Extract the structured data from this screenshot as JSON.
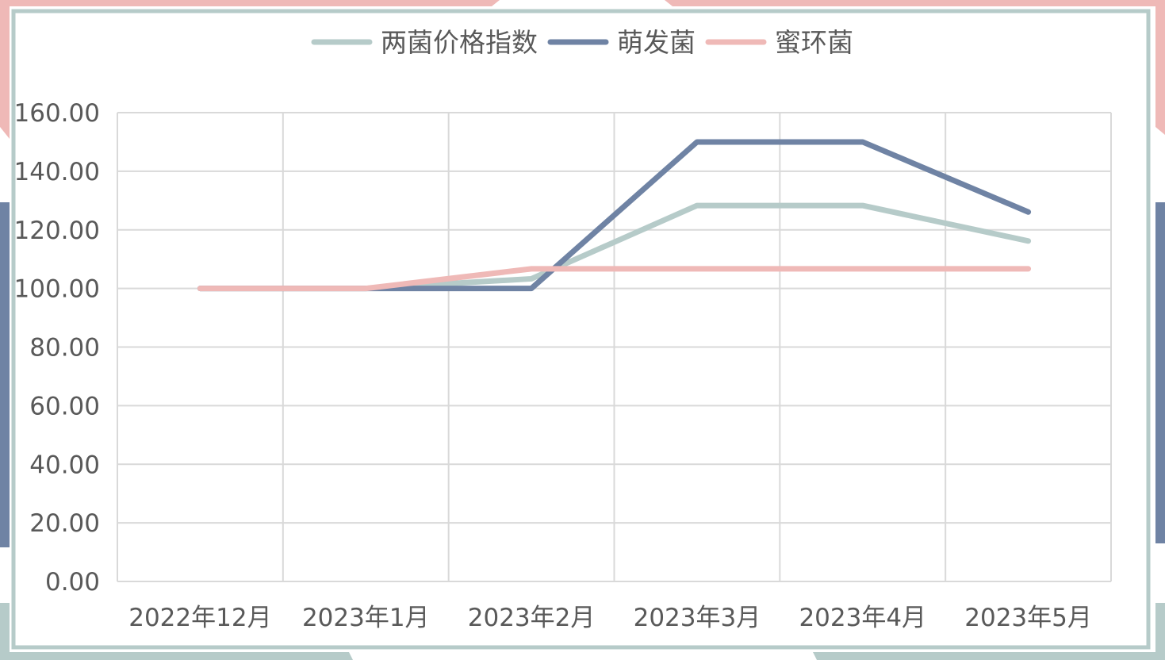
{
  "colors": {
    "frame": "#b6cbc9",
    "accent_pink": "#efb9b7",
    "accent_blue": "#6f83a4",
    "grid": "#d9d9d9",
    "text": "#595959"
  },
  "chart_data": {
    "type": "line",
    "categories": [
      "2022年12月",
      "2023年1月",
      "2023年2月",
      "2023年3月",
      "2023年4月",
      "2023年5月"
    ],
    "ylim": [
      0,
      160
    ],
    "y_ticks": [
      "0.00",
      "20.00",
      "40.00",
      "60.00",
      "80.00",
      "100.00",
      "120.00",
      "140.00",
      "160.00"
    ],
    "grid": true,
    "legend_position": "top",
    "series": [
      {
        "name": "两菌价格指数",
        "color": "#b6cbc9",
        "values": [
          100,
          100,
          103.3,
          128.3,
          128.3,
          116.2
        ]
      },
      {
        "name": "萌发菌",
        "color": "#6f83a4",
        "values": [
          100,
          100,
          100,
          150,
          150,
          126.1
        ]
      },
      {
        "name": "蜜环菌",
        "color": "#efb9b7",
        "values": [
          100,
          100,
          106.7,
          106.7,
          106.7,
          106.7
        ]
      }
    ]
  }
}
